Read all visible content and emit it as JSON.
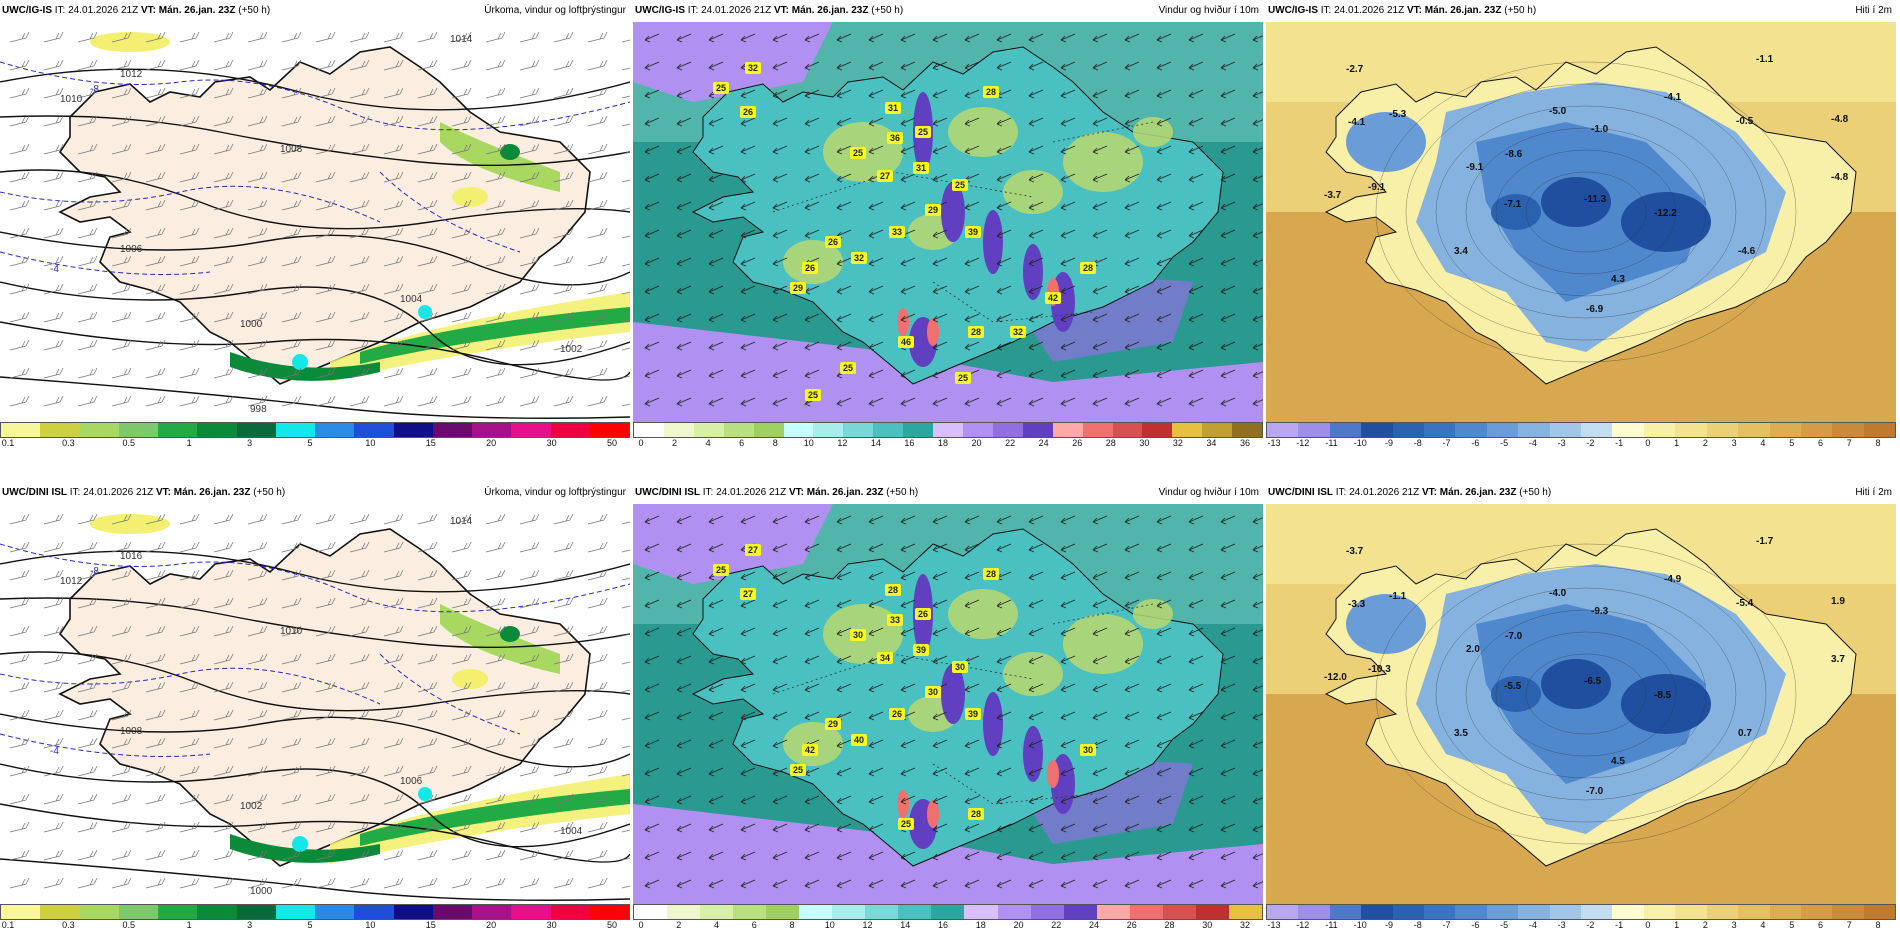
{
  "panels": [
    {
      "id": "igis-precip",
      "model": "UWC/IG-IS",
      "it": "IT: 24.01.2026 21Z",
      "vt_label": "VT:",
      "vt": "Mán. 26.jan. 23Z",
      "lead": "(+50 h)",
      "title": "Úrkoma, vindur og loftþrýstingur",
      "kind": "precip",
      "isobars": [
        "1012",
        "1014",
        "1010",
        "1008",
        "1006",
        "1004",
        "1002",
        "1000",
        "998"
      ],
      "temps": [
        "-8",
        "-4"
      ],
      "colorbar": {
        "colors": [
          "#f7f79a",
          "#cfd040",
          "#a8d860",
          "#7cc86a",
          "#22aa44",
          "#0b8a3a",
          "#0b6a3a",
          "#12e8e8",
          "#2a8ae8",
          "#1f4fd8",
          "#0f0f88",
          "#6a0a6a",
          "#a8108a",
          "#e8108a",
          "#f00040",
          "#ff0000"
        ],
        "ticks": [
          "0.1",
          "0.3",
          "0.5",
          "1",
          "3",
          "5",
          "10",
          "15",
          "20",
          "30",
          "50"
        ]
      }
    },
    {
      "id": "igis-wind",
      "model": "UWC/IG-IS",
      "it": "IT: 24.01.2026 21Z",
      "vt_label": "VT:",
      "vt": "Mán. 26.jan. 23Z",
      "lead": "(+50 h)",
      "title": "Vindur og hviður í 10m",
      "kind": "wind",
      "gusts": [
        "32",
        "25",
        "26",
        "31",
        "28",
        "36",
        "25",
        "25",
        "27",
        "31",
        "25",
        "29",
        "33",
        "39",
        "26",
        "26",
        "32",
        "28",
        "29",
        "46",
        "28",
        "42",
        "32",
        "25",
        "25",
        "25"
      ],
      "colorbar": {
        "colors": [
          "#ffffff",
          "#eef8cc",
          "#d8efa8",
          "#b8e080",
          "#9fcf60",
          "#c8ffff",
          "#a8ecec",
          "#78d8d8",
          "#4ac0c0",
          "#2aa8a0",
          "#d8c0ff",
          "#b090f0",
          "#9070e0",
          "#6040c0",
          "#ffa8a8",
          "#f07070",
          "#d85050",
          "#c03030",
          "#e8c040",
          "#c0a030",
          "#907020"
        ],
        "ticks": [
          "0",
          "2",
          "4",
          "6",
          "8",
          "10",
          "12",
          "14",
          "16",
          "18",
          "20",
          "22",
          "24",
          "26",
          "28",
          "30",
          "32",
          "34",
          "36"
        ]
      }
    },
    {
      "id": "igis-temp",
      "model": "UWC/IG-IS",
      "it": "IT: 24.01.2026 21Z",
      "vt_label": "VT:",
      "vt": "Mán. 26.jan. 23Z",
      "lead": "(+50 h)",
      "title": "Hiti í 2m",
      "kind": "temp",
      "temps": [
        "-2.7",
        "-1.1",
        "-4.1",
        "-5.3",
        "-5.0",
        "-4.1",
        "-1.0",
        "-0.5",
        "-4.8",
        "-8.6",
        "-9.1",
        "-4.8",
        "-9.1",
        "-3.7",
        "-7.1",
        "-11.3",
        "-12.2",
        "3.4",
        "-4.6",
        "4.3",
        "-6.9"
      ],
      "colorbar": {
        "colors": [
          "#b8a8f0",
          "#9d8ee8",
          "#5078c8",
          "#1f4f9e",
          "#2a62b0",
          "#3a74c0",
          "#4f88cc",
          "#6a9cd8",
          "#86b2e0",
          "#a2c6e8",
          "#c2dcf0",
          "#fdfbd0",
          "#f8f0a8",
          "#f3e290",
          "#ecd078",
          "#e5c060",
          "#ddae50",
          "#d49c45",
          "#c98a3a",
          "#c07a30"
        ],
        "ticks": [
          "-13",
          "-12",
          "-11",
          "-10",
          "-9",
          "-8",
          "-7",
          "-6",
          "-5",
          "-4",
          "-3",
          "-2",
          "-1",
          "0",
          "1",
          "2",
          "3",
          "4",
          "5",
          "6",
          "7",
          "8"
        ]
      }
    },
    {
      "id": "dini-precip",
      "model": "UWC/DINI ISL",
      "it": "IT: 24.01.2026 21Z",
      "vt_label": "VT:",
      "vt": "Mán. 26.jan. 23Z",
      "lead": "(+50 h)",
      "title": "Úrkoma, vindur og loftþrýstingur",
      "kind": "precip",
      "isobars": [
        "1016",
        "1014",
        "1012",
        "1010",
        "1008",
        "1006",
        "1004",
        "1002",
        "1000"
      ],
      "temps": [
        "-8",
        "-4"
      ],
      "colorbar": {
        "colors": [
          "#f7f79a",
          "#cfd040",
          "#a8d860",
          "#7cc86a",
          "#22aa44",
          "#0b8a3a",
          "#0b6a3a",
          "#12e8e8",
          "#2a8ae8",
          "#1f4fd8",
          "#0f0f88",
          "#6a0a6a",
          "#a8108a",
          "#e8108a",
          "#f00040",
          "#ff0000"
        ],
        "ticks": [
          "0.1",
          "0.3",
          "0.5",
          "1",
          "3",
          "5",
          "10",
          "15",
          "20",
          "30",
          "50"
        ]
      }
    },
    {
      "id": "dini-wind",
      "model": "UWC/DINI ISL",
      "it": "IT: 24.01.2026 21Z",
      "vt_label": "VT:",
      "vt": "Mán. 26.jan. 23Z",
      "lead": "(+50 h)",
      "title": "Vindur og hviður í 10m",
      "kind": "wind",
      "gusts": [
        "27",
        "25",
        "27",
        "28",
        "28",
        "33",
        "26",
        "30",
        "34",
        "39",
        "30",
        "30",
        "26",
        "39",
        "29",
        "42",
        "40",
        "30",
        "25",
        "25",
        "28"
      ],
      "colorbar": {
        "colors": [
          "#ffffff",
          "#eef8cc",
          "#d8efa8",
          "#b8e080",
          "#9fcf60",
          "#c8ffff",
          "#a8ecec",
          "#78d8d8",
          "#4ac0c0",
          "#2aa8a0",
          "#d8c0ff",
          "#b090f0",
          "#9070e0",
          "#6040c0",
          "#ffa8a8",
          "#f07070",
          "#d85050",
          "#c03030",
          "#e8c040"
        ],
        "ticks": [
          "0",
          "2",
          "4",
          "6",
          "8",
          "10",
          "12",
          "14",
          "16",
          "18",
          "20",
          "22",
          "24",
          "26",
          "28",
          "30",
          "32"
        ]
      }
    },
    {
      "id": "dini-temp",
      "model": "UWC/DINI ISL",
      "it": "IT: 24.01.2026 21Z",
      "vt_label": "VT:",
      "vt": "Mán. 26.jan. 23Z",
      "lead": "(+50 h)",
      "title": "Hiti í 2m",
      "kind": "temp",
      "temps": [
        "-3.7",
        "-1.7",
        "-3.3",
        "-1.1",
        "-4.0",
        "-4.9",
        "-9.3",
        "-5.4",
        "1.9",
        "-7.0",
        "2.0",
        "3.7",
        "-10.3",
        "-12.0",
        "-5.5",
        "-6.5",
        "-8.5",
        "3.5",
        "0.7",
        "4.5",
        "-7.0"
      ],
      "colorbar": {
        "colors": [
          "#b8a8f0",
          "#9d8ee8",
          "#5078c8",
          "#1f4f9e",
          "#2a62b0",
          "#3a74c0",
          "#4f88cc",
          "#6a9cd8",
          "#86b2e0",
          "#a2c6e8",
          "#c2dcf0",
          "#fdfbd0",
          "#f8f0a8",
          "#f3e290",
          "#ecd078",
          "#e5c060",
          "#ddae50",
          "#d49c45",
          "#c98a3a",
          "#c07a30"
        ],
        "ticks": [
          "-13",
          "-12",
          "-11",
          "-10",
          "-9",
          "-8",
          "-7",
          "-6",
          "-5",
          "-4",
          "-3",
          "-2",
          "-1",
          "0",
          "1",
          "2",
          "3",
          "4",
          "5",
          "6",
          "7",
          "8"
        ]
      }
    }
  ]
}
